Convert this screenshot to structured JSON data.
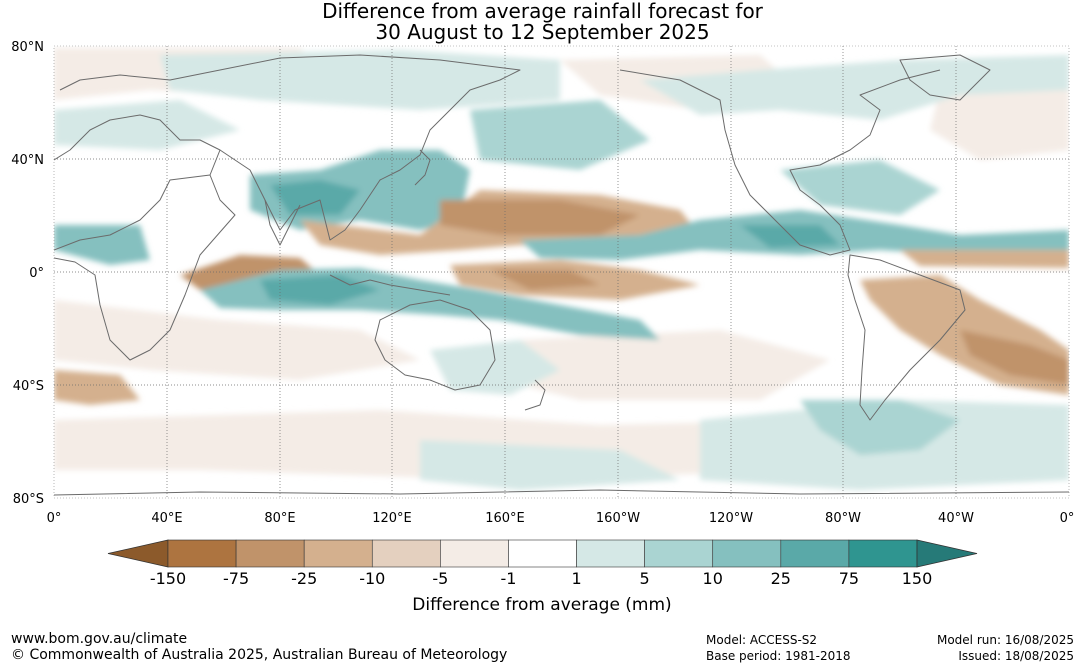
{
  "title": {
    "line1": "Difference from average rainfall forecast for",
    "line2": "30 August to 12 September 2025"
  },
  "map": {
    "lat_labels": [
      "80°N",
      "40°N",
      "0°",
      "40°S",
      "80°S"
    ],
    "lon_labels": [
      "0°",
      "40°E",
      "80°E",
      "120°E",
      "160°E",
      "160°W",
      "120°W",
      "80°W",
      "40°W",
      "0°"
    ]
  },
  "legend": {
    "title": "Difference from average (mm)",
    "tick_labels": [
      "-150",
      "-75",
      "-25",
      "-10",
      "-5",
      "-1",
      "1",
      "5",
      "10",
      "25",
      "75",
      "150"
    ],
    "colors": [
      "#8c5a2b",
      "#ad7440",
      "#c0936a",
      "#d4b08e",
      "#e4d0bf",
      "#f4ece6",
      "#ffffff",
      "#d5e8e6",
      "#aad4d2",
      "#85c0bf",
      "#5aa9a8",
      "#2f9590",
      "#267a78"
    ]
  },
  "footer": {
    "url": "www.bom.gov.au/climate",
    "copyright": "© Commonwealth of Australia 2025, Australian Bureau of Meteorology",
    "model": "Model: ACCESS-S2",
    "base_period": "Base period: 1981-2018",
    "model_run": "Model run: 16/08/2025",
    "issued": "Issued: 18/08/2025"
  }
}
